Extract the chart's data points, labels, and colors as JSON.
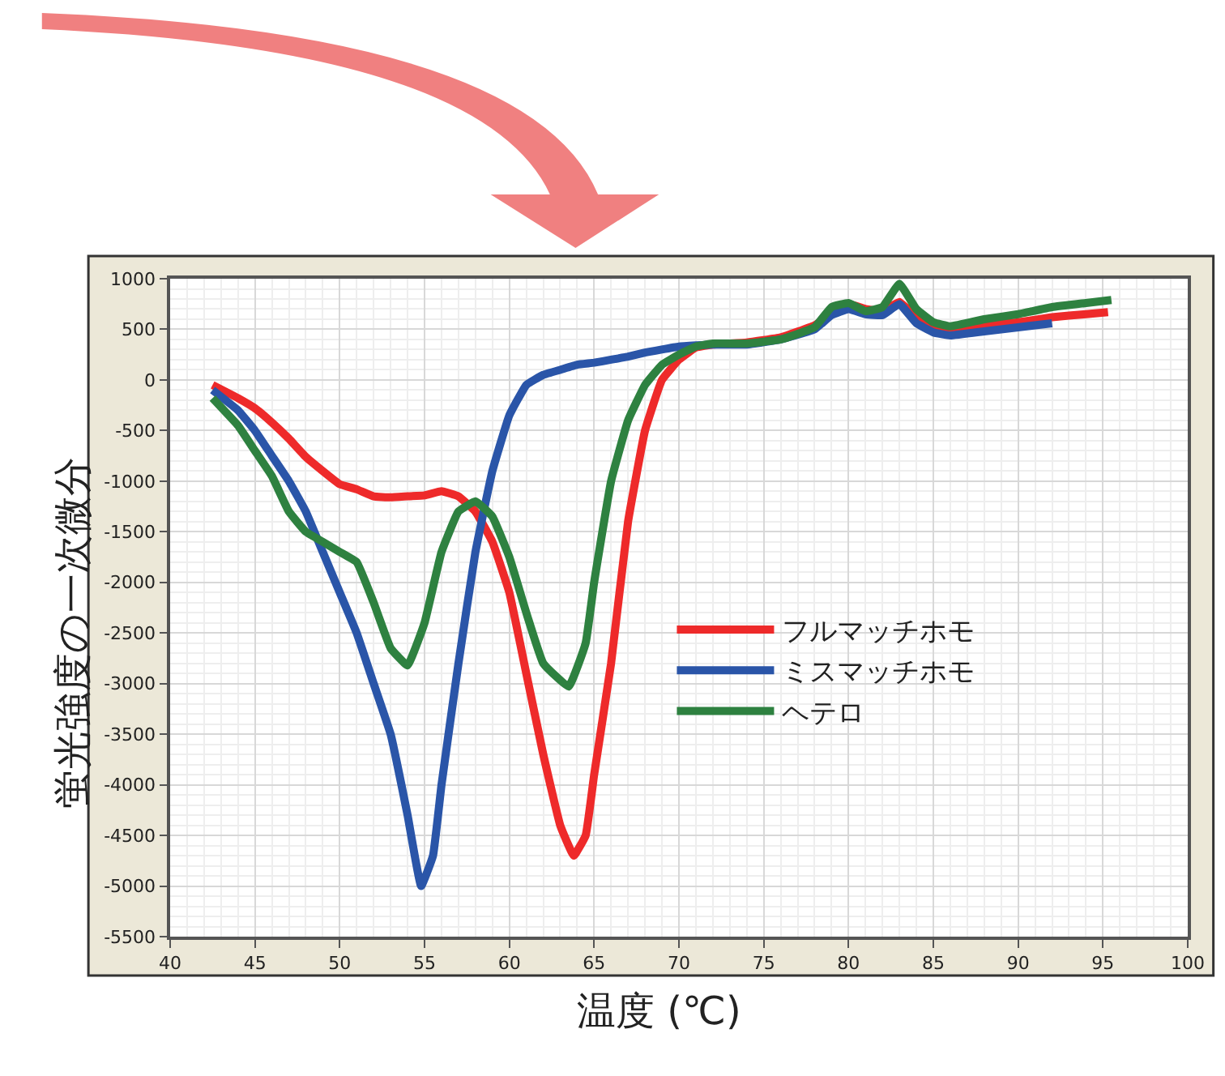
{
  "chart_data": {
    "type": "line",
    "xlabel": "温度 (℃)",
    "ylabel": "蛍光強度の一次微分",
    "xlim": [
      40,
      100
    ],
    "xticks": [
      40,
      45,
      50,
      55,
      60,
      65,
      70,
      75,
      80,
      85,
      90,
      95,
      100
    ],
    "ylim": [
      -5500,
      1000
    ],
    "yticks": [
      -5500,
      -5000,
      -4500,
      -4000,
      -3500,
      -3000,
      -2500,
      -2000,
      -1500,
      -1000,
      -500,
      0,
      500,
      1000
    ],
    "grid": true,
    "legend": "bottom right",
    "marker": "none",
    "line_style": "solid",
    "series": [
      {
        "name": "フルマッチホモ",
        "color": "#ee2a2a",
        "x": [
          42.5,
          44,
          45,
          46,
          47,
          48,
          49,
          50,
          51,
          52,
          53,
          54,
          55,
          56,
          57,
          58,
          59,
          60,
          61,
          62,
          63,
          63.8,
          64.5,
          65,
          66,
          67,
          68,
          69,
          70,
          71,
          72,
          74,
          76,
          78,
          80,
          81,
          82,
          83,
          84,
          85,
          86,
          87,
          88,
          90,
          92,
          94,
          95.3
        ],
        "values": [
          -50,
          -180,
          -280,
          -420,
          -580,
          -760,
          -900,
          -1030,
          -1080,
          -1150,
          -1160,
          -1150,
          -1140,
          -1100,
          -1150,
          -1300,
          -1600,
          -2100,
          -2900,
          -3700,
          -4400,
          -4700,
          -4500,
          -3900,
          -2800,
          -1400,
          -500,
          0,
          200,
          320,
          350,
          370,
          420,
          540,
          750,
          700,
          680,
          770,
          620,
          530,
          480,
          490,
          540,
          570,
          620,
          650,
          670
        ]
      },
      {
        "name": "ミスマッチホモ",
        "color": "#2a55a8",
        "x": [
          42.5,
          44,
          45,
          46,
          47,
          48,
          49,
          50,
          51,
          52,
          53,
          54,
          54.8,
          55.5,
          56,
          57,
          58,
          59,
          60,
          61,
          62,
          63,
          64,
          65,
          66,
          67,
          68,
          70,
          72,
          74,
          76,
          78,
          79,
          80,
          81,
          82,
          83,
          84,
          85,
          86,
          88,
          90,
          92
        ],
        "values": [
          -100,
          -300,
          -500,
          -750,
          -1000,
          -1300,
          -1700,
          -2100,
          -2500,
          -3000,
          -3500,
          -4300,
          -5000,
          -4700,
          -4000,
          -2800,
          -1700,
          -900,
          -350,
          -50,
          50,
          100,
          150,
          170,
          200,
          230,
          270,
          330,
          350,
          350,
          400,
          500,
          640,
          700,
          650,
          640,
          750,
          560,
          470,
          440,
          480,
          520,
          560
        ]
      },
      {
        "name": "ヘテロ",
        "color": "#2e8140",
        "x": [
          42.5,
          44,
          45,
          46,
          47,
          48,
          49,
          50,
          51,
          52,
          53,
          54,
          55,
          56,
          57,
          58,
          59,
          60,
          61,
          62,
          63.5,
          64.5,
          65,
          66,
          67,
          68,
          69,
          70,
          71,
          72,
          74,
          76,
          78,
          79,
          80,
          81,
          82,
          83,
          84,
          85,
          86,
          88,
          90,
          92,
          94,
          95.5
        ],
        "values": [
          -180,
          -450,
          -700,
          -950,
          -1300,
          -1500,
          -1600,
          -1700,
          -1800,
          -2200,
          -2650,
          -2820,
          -2400,
          -1700,
          -1300,
          -1200,
          -1350,
          -1750,
          -2300,
          -2800,
          -3030,
          -2600,
          -2000,
          -1000,
          -400,
          -50,
          150,
          250,
          330,
          360,
          360,
          400,
          520,
          720,
          760,
          680,
          720,
          950,
          700,
          570,
          530,
          600,
          650,
          720,
          760,
          790
        ]
      }
    ]
  }
}
